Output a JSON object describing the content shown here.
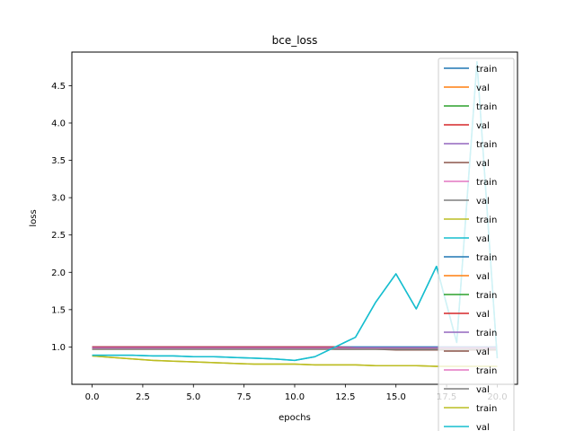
{
  "chart_data": {
    "type": "line",
    "title": "bce_loss",
    "xlabel": "epochs",
    "ylabel": "loss",
    "xlim": [
      -1,
      21
    ],
    "ylim": [
      0.5,
      4.95
    ],
    "xticks": [
      0.0,
      2.5,
      5.0,
      7.5,
      10.0,
      12.5,
      15.0,
      17.5,
      20.0
    ],
    "yticks": [
      1.0,
      1.5,
      2.0,
      2.5,
      3.0,
      3.5,
      4.0,
      4.5
    ],
    "grid": false,
    "legend_position": "right",
    "x": [
      0,
      1,
      2,
      3,
      4,
      5,
      6,
      7,
      8,
      9,
      10,
      11,
      12,
      13,
      14,
      15,
      16,
      17,
      18,
      19,
      20
    ],
    "series": [
      {
        "name": "train",
        "color": "#1f77b4",
        "values": [
          1.0,
          1.0,
          1.0,
          1.0,
          1.0,
          1.0,
          1.0,
          1.0,
          1.0,
          1.0,
          1.0,
          1.0,
          1.0,
          1.0,
          1.0,
          1.0,
          1.0,
          1.0,
          1.0,
          1.0,
          1.0
        ]
      },
      {
        "name": "val",
        "color": "#ff7f0e",
        "values": [
          0.97,
          0.97,
          0.97,
          0.97,
          0.97,
          0.97,
          0.97,
          0.97,
          0.97,
          0.97,
          0.97,
          0.97,
          0.97,
          0.97,
          0.97,
          0.97,
          0.97,
          0.97,
          0.97,
          0.97,
          0.97
        ]
      },
      {
        "name": "train",
        "color": "#2ca02c",
        "values": [
          0.99,
          0.99,
          0.99,
          0.99,
          0.99,
          0.99,
          0.99,
          0.99,
          0.99,
          0.99,
          0.99,
          0.99,
          0.99,
          0.99,
          0.99,
          0.99,
          0.99,
          0.99,
          0.99,
          0.99,
          0.99
        ]
      },
      {
        "name": "val",
        "color": "#d62728",
        "values": [
          1.0,
          1.0,
          1.0,
          1.0,
          1.0,
          1.0,
          1.0,
          1.0,
          1.0,
          1.0,
          1.0,
          1.0,
          1.0,
          0.99,
          0.99,
          0.99,
          0.99,
          0.99,
          0.99,
          0.99,
          0.99
        ]
      },
      {
        "name": "train",
        "color": "#9467bd",
        "values": [
          0.99,
          0.99,
          0.99,
          0.99,
          0.99,
          0.99,
          0.99,
          0.99,
          0.99,
          0.99,
          0.99,
          0.99,
          0.99,
          0.99,
          0.99,
          0.99,
          0.99,
          0.99,
          0.99,
          0.99,
          0.99
        ]
      },
      {
        "name": "val",
        "color": "#8c564b",
        "values": [
          0.98,
          0.98,
          0.98,
          0.98,
          0.98,
          0.98,
          0.98,
          0.98,
          0.98,
          0.98,
          0.98,
          0.98,
          0.97,
          0.97,
          0.97,
          0.96,
          0.96,
          0.96,
          0.96,
          0.96,
          0.96
        ]
      },
      {
        "name": "train",
        "color": "#e377c2",
        "values": [
          0.98,
          0.98,
          0.98,
          0.98,
          0.98,
          0.98,
          0.98,
          0.98,
          0.98,
          0.98,
          0.98,
          0.98,
          0.98,
          0.98,
          0.98,
          0.98,
          0.98,
          0.98,
          0.98,
          0.98,
          0.98
        ]
      },
      {
        "name": "val",
        "color": "#7f7f7f",
        "values": [
          0.97,
          0.97,
          0.97,
          0.97,
          0.97,
          0.97,
          0.97,
          0.97,
          0.97,
          0.97,
          0.97,
          0.97,
          0.97,
          0.97,
          0.97,
          0.97,
          0.97,
          0.97,
          0.97,
          0.97,
          0.97
        ]
      },
      {
        "name": "train",
        "color": "#bcbd22",
        "values": [
          0.88,
          0.86,
          0.84,
          0.82,
          0.81,
          0.8,
          0.79,
          0.78,
          0.77,
          0.77,
          0.77,
          0.76,
          0.76,
          0.76,
          0.75,
          0.75,
          0.75,
          0.74,
          0.74,
          0.74,
          0.74
        ]
      },
      {
        "name": "val",
        "color": "#17becf",
        "values": [
          0.89,
          0.89,
          0.89,
          0.88,
          0.88,
          0.87,
          0.87,
          0.86,
          0.85,
          0.84,
          0.82,
          0.87,
          1.0,
          1.13,
          1.6,
          1.98,
          1.51,
          2.08,
          1.06,
          4.82,
          0.85
        ]
      },
      {
        "name": "train",
        "color": "#1f77b4",
        "values": [
          0.99,
          0.99,
          0.99,
          0.99,
          0.99,
          0.99,
          0.99,
          0.99,
          0.99,
          0.99,
          0.99,
          0.99,
          0.99,
          0.99,
          0.99,
          0.99,
          0.99,
          0.99,
          0.99,
          0.99,
          0.99
        ]
      },
      {
        "name": "val",
        "color": "#ff7f0e",
        "values": [
          0.98,
          0.98,
          0.98,
          0.98,
          0.98,
          0.98,
          0.98,
          0.98,
          0.98,
          0.98,
          0.98,
          0.98,
          0.98,
          0.98,
          0.98,
          0.98,
          0.98,
          0.98,
          0.98,
          0.98,
          0.98
        ]
      },
      {
        "name": "train",
        "color": "#2ca02c",
        "values": [
          0.99,
          0.99,
          0.99,
          0.99,
          0.99,
          0.99,
          0.99,
          0.99,
          0.99,
          0.99,
          0.99,
          0.99,
          0.99,
          0.99,
          0.99,
          0.99,
          0.99,
          0.99,
          0.99,
          0.99,
          0.99
        ]
      },
      {
        "name": "val",
        "color": "#d62728",
        "values": [
          0.99,
          0.99,
          0.99,
          0.99,
          0.99,
          0.99,
          0.99,
          0.99,
          0.99,
          0.99,
          0.99,
          0.99,
          0.99,
          0.99,
          0.99,
          0.99,
          0.99,
          0.99,
          0.99,
          0.99,
          0.99
        ]
      },
      {
        "name": "train",
        "color": "#9467bd",
        "values": [
          0.99,
          0.99,
          0.99,
          0.99,
          0.99,
          0.99,
          0.99,
          0.99,
          0.99,
          0.99,
          0.99,
          0.99,
          0.99,
          0.99,
          0.99,
          0.99,
          0.99,
          0.99,
          0.99,
          0.99,
          0.99
        ]
      },
      {
        "name": "val",
        "color": "#8c564b",
        "values": [
          0.98,
          0.98,
          0.98,
          0.98,
          0.98,
          0.98,
          0.98,
          0.98,
          0.98,
          0.98,
          0.98,
          0.98,
          0.98,
          0.98,
          0.98,
          0.98,
          0.98,
          0.98,
          0.98,
          0.98,
          0.98
        ]
      },
      {
        "name": "train",
        "color": "#e377c2",
        "values": [
          0.98,
          0.98,
          0.98,
          0.98,
          0.98,
          0.98,
          0.98,
          0.98,
          0.98,
          0.98,
          0.98,
          0.98,
          0.98,
          0.98,
          0.98,
          0.98,
          0.98,
          0.98,
          0.98,
          0.98,
          0.98
        ]
      },
      {
        "name": "val",
        "color": "#7f7f7f",
        "values": [
          0.97,
          0.97,
          0.97,
          0.97,
          0.97,
          0.97,
          0.97,
          0.97,
          0.97,
          0.97,
          0.97,
          0.97,
          0.97,
          0.97,
          0.97,
          0.97,
          0.97,
          0.97,
          0.97,
          0.97,
          0.97
        ]
      },
      {
        "name": "train",
        "color": "#bcbd22",
        "values": [
          0.88,
          0.86,
          0.84,
          0.82,
          0.81,
          0.8,
          0.79,
          0.78,
          0.77,
          0.77,
          0.77,
          0.76,
          0.76,
          0.76,
          0.75,
          0.75,
          0.75,
          0.74,
          0.74,
          0.74,
          0.74
        ]
      },
      {
        "name": "val",
        "color": "#17becf",
        "values": [
          0.89,
          0.89,
          0.89,
          0.88,
          0.88,
          0.87,
          0.87,
          0.86,
          0.85,
          0.84,
          0.82,
          0.87,
          1.0,
          1.13,
          1.6,
          1.98,
          1.51,
          2.08,
          1.06,
          4.82,
          0.85
        ]
      }
    ]
  }
}
